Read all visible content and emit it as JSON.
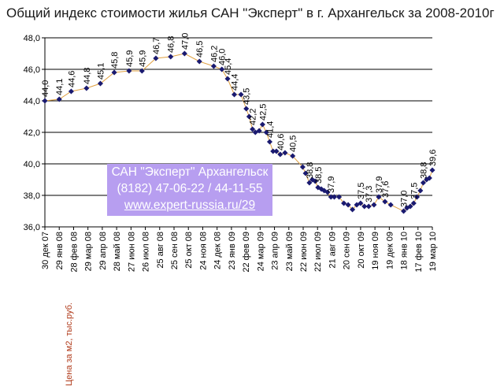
{
  "title": "Общий индекс стоимости жилья САН \"Эксперт\" в г. Архангельск за 2008-2010г",
  "watermark": {
    "line1": "САН \"Эксперт\" Архангельск",
    "line2": "(8182) 47-06-22 / 44-11-55",
    "line3": "www.expert-russia.ru/29"
  },
  "colors": {
    "line": "#e0a040",
    "marker": "#1a1a70",
    "grid": "#000000",
    "watermark_bg": "#b79ef0",
    "ylabel": "#b03a1a"
  },
  "chart_data": {
    "type": "line",
    "title": "Общий индекс стоимости жилья САН \"Эксперт\" в г. Архангельск за 2008-2010г",
    "ylabel": "Цена за м2, тыс.руб.",
    "xlabel": "",
    "ylim": [
      36.0,
      48.0
    ],
    "ytick_labels": [
      "36,0",
      "38,0",
      "40,0",
      "42,0",
      "44,0",
      "46,0",
      "48,0"
    ],
    "grid": true,
    "x_tick_labels": [
      "30 дек 07",
      "29 янв 08",
      "28 фев 08",
      "29 мар 08",
      "29 апр 08",
      "28 май 08",
      "27 июн 08",
      "26 июл 08",
      "25 авг 08",
      "25 сен 08",
      "25 окт 08",
      "24 ноя 08",
      "24 дек 08",
      "23 янв 09",
      "22 фев 09",
      "24 мар 09",
      "23 апр 09",
      "23 май 09",
      "22 июн 09",
      "22 июл 09",
      "21 авг 09",
      "20 сен 09",
      "20 окт 09",
      "19 ноя 09",
      "19 дек 09",
      "18 янв 10",
      "17 фев 10",
      "19 мар 10"
    ],
    "x_range": [
      "2007-12-30",
      "2010-03-19"
    ],
    "points": [
      {
        "x": "2007-12-30",
        "y": 44.0,
        "label": "44,0"
      },
      {
        "x": "2008-01-29",
        "y": 44.1,
        "label": "44,1"
      },
      {
        "x": "2008-02-23",
        "y": 44.6,
        "label": "44,6"
      },
      {
        "x": "2008-03-26",
        "y": 44.8,
        "label": "44,8"
      },
      {
        "x": "2008-04-24",
        "y": 45.1,
        "label": "45,1"
      },
      {
        "x": "2008-05-23",
        "y": 45.8,
        "label": "45,8"
      },
      {
        "x": "2008-06-23",
        "y": 45.9,
        "label": "45,9"
      },
      {
        "x": "2008-07-20",
        "y": 45.9,
        "label": "45,9"
      },
      {
        "x": "2008-08-18",
        "y": 46.7,
        "label": "46,7"
      },
      {
        "x": "2008-09-18",
        "y": 46.8,
        "label": "46,8"
      },
      {
        "x": "2008-10-17",
        "y": 47.0,
        "label": "47,0"
      },
      {
        "x": "2008-11-17",
        "y": 46.5,
        "label": "46,5"
      },
      {
        "x": "2008-12-17",
        "y": 46.2,
        "label": "46,2"
      },
      {
        "x": "2009-01-03",
        "y": 46.0,
        "label": "46,0"
      },
      {
        "x": "2009-01-15",
        "y": 45.4,
        "label": "45,4"
      },
      {
        "x": "2009-01-29",
        "y": 44.4,
        "label": "44,4"
      },
      {
        "x": "2009-02-12",
        "y": 44.4,
        "label": ""
      },
      {
        "x": "2009-02-23",
        "y": 43.5,
        "label": "43,5"
      },
      {
        "x": "2009-03-01",
        "y": 43.0,
        "label": ""
      },
      {
        "x": "2009-03-08",
        "y": 42.2,
        "label": "42,2"
      },
      {
        "x": "2009-03-14",
        "y": 42.0,
        "label": ""
      },
      {
        "x": "2009-03-22",
        "y": 42.1,
        "label": ""
      },
      {
        "x": "2009-03-29",
        "y": 42.5,
        "label": "42,5"
      },
      {
        "x": "2009-04-06",
        "y": 42.0,
        "label": ""
      },
      {
        "x": "2009-04-13",
        "y": 41.4,
        "label": "41,4"
      },
      {
        "x": "2009-04-20",
        "y": 40.8,
        "label": ""
      },
      {
        "x": "2009-04-27",
        "y": 40.8,
        "label": ""
      },
      {
        "x": "2009-05-05",
        "y": 40.6,
        "label": "40,6"
      },
      {
        "x": "2009-05-15",
        "y": 40.7,
        "label": ""
      },
      {
        "x": "2009-05-31",
        "y": 40.5,
        "label": "40,5"
      },
      {
        "x": "2009-06-21",
        "y": 39.8,
        "label": ""
      },
      {
        "x": "2009-06-27",
        "y": 39.4,
        "label": ""
      },
      {
        "x": "2009-07-05",
        "y": 38.8,
        "label": "38,8"
      },
      {
        "x": "2009-07-11",
        "y": 39.0,
        "label": ""
      },
      {
        "x": "2009-07-17",
        "y": 38.9,
        "label": ""
      },
      {
        "x": "2009-07-23",
        "y": 38.5,
        "label": "38,5"
      },
      {
        "x": "2009-07-30",
        "y": 38.4,
        "label": ""
      },
      {
        "x": "2009-08-05",
        "y": 38.3,
        "label": ""
      },
      {
        "x": "2009-08-12",
        "y": 38.2,
        "label": ""
      },
      {
        "x": "2009-08-19",
        "y": 37.9,
        "label": "37,9"
      },
      {
        "x": "2009-08-26",
        "y": 37.9,
        "label": ""
      },
      {
        "x": "2009-09-05",
        "y": 37.9,
        "label": ""
      },
      {
        "x": "2009-09-15",
        "y": 37.5,
        "label": ""
      },
      {
        "x": "2009-09-24",
        "y": 37.4,
        "label": ""
      },
      {
        "x": "2009-10-03",
        "y": 37.1,
        "label": ""
      },
      {
        "x": "2009-10-12",
        "y": 37.4,
        "label": ""
      },
      {
        "x": "2009-10-20",
        "y": 37.5,
        "label": "37,5"
      },
      {
        "x": "2009-10-28",
        "y": 37.3,
        "label": ""
      },
      {
        "x": "2009-11-06",
        "y": 37.3,
        "label": "37,3"
      },
      {
        "x": "2009-11-17",
        "y": 37.4,
        "label": ""
      },
      {
        "x": "2009-11-27",
        "y": 37.9,
        "label": "37,9"
      },
      {
        "x": "2009-12-10",
        "y": 37.6,
        "label": "37,6"
      },
      {
        "x": "2009-12-22",
        "y": 37.4,
        "label": ""
      },
      {
        "x": "2010-01-18",
        "y": 37.0,
        "label": "37,0"
      },
      {
        "x": "2010-01-25",
        "y": 37.2,
        "label": ""
      },
      {
        "x": "2010-02-01",
        "y": 37.3,
        "label": ""
      },
      {
        "x": "2010-02-08",
        "y": 37.5,
        "label": "37,5"
      },
      {
        "x": "2010-02-15",
        "y": 37.9,
        "label": ""
      },
      {
        "x": "2010-02-22",
        "y": 38.3,
        "label": ""
      },
      {
        "x": "2010-02-28",
        "y": 38.8,
        "label": "38,8"
      },
      {
        "x": "2010-03-07",
        "y": 39.0,
        "label": ""
      },
      {
        "x": "2010-03-13",
        "y": 39.1,
        "label": ""
      },
      {
        "x": "2010-03-19",
        "y": 39.6,
        "label": "39,6"
      }
    ]
  }
}
